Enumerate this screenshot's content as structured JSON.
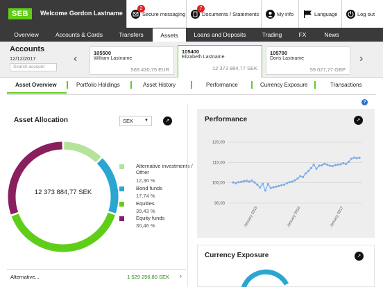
{
  "header": {
    "logo": "SEB",
    "welcome": "Welcome Gordon Lastname",
    "buttons": [
      {
        "label": "Secure messaging",
        "icon": "envelope-icon",
        "badge": "2"
      },
      {
        "label": "Documents / Statements",
        "icon": "document-icon",
        "badge": "7"
      },
      {
        "label": "My info",
        "icon": "user-icon"
      },
      {
        "label": "Language",
        "icon": "flag-icon"
      },
      {
        "label": "Log out",
        "icon": "logout-icon"
      }
    ]
  },
  "nav": [
    "Overview",
    "Accounts & Cards",
    "Transfers",
    "Assets",
    "Loans and Deposits",
    "Trading",
    "FX",
    "News"
  ],
  "accounts": {
    "title": "Accounts",
    "date": "12/12/2017",
    "search_placeholder": "Search account",
    "cards": [
      {
        "number": "105500",
        "name": "William Lastname",
        "balance": "569 430,75 EUR"
      },
      {
        "number": "105400",
        "name": "Elizabeth Lastname",
        "balance": "12 373 884,77 SEK"
      },
      {
        "number": "105700",
        "name": "Doris Lastname",
        "balance": "59 027,77 GBP"
      }
    ]
  },
  "subtabs": [
    "Asset Overview",
    "Portfolio Holdings",
    "Asset History",
    "Performance",
    "Currency Exposure",
    "Transactions"
  ],
  "help": "?",
  "asset_allocation": {
    "title": "Asset Allocation",
    "currency": "SEK",
    "total": "12 373 884,77 SEK",
    "legend": [
      {
        "label": "Alternative investments / Other",
        "pct": "12,36 %",
        "value": 12.36,
        "color": "#b5e39a"
      },
      {
        "label": "Bond funds",
        "pct": "17,74 %",
        "value": 17.74,
        "color": "#2aa6d0"
      },
      {
        "label": "Equities",
        "pct": "39,43 %",
        "value": 39.43,
        "color": "#60cd18"
      },
      {
        "label": "Equity funds",
        "pct": "30,46 %",
        "value": 30.46,
        "color": "#8a1e5e"
      }
    ],
    "row": {
      "label": "Alternative...",
      "value": "1 529 256,80 SEK"
    }
  },
  "performance": {
    "title": "Performance"
  },
  "currency_exposure": {
    "title": "Currency Exposure"
  },
  "chart_data": {
    "type": "line",
    "title": "Performance",
    "yticks": [
      "120,00",
      "110,00",
      "100,00",
      "90,00"
    ],
    "ylim": [
      90,
      120
    ],
    "xticks": [
      "January 2015",
      "January 2016",
      "January 2017"
    ],
    "series": [
      {
        "color": "#7aaee8",
        "values": [
          100.2,
          99.8,
          100.3,
          100.5,
          100.8,
          101.0,
          100.6,
          101.1,
          100.2,
          99.1,
          97.7,
          99.5,
          96.2,
          99.4,
          97.4,
          97.8,
          98.1,
          98.4,
          98.8,
          99.1,
          99.8,
          100.3,
          100.6,
          101.2,
          102.1,
          103.2,
          102.8,
          104.6,
          105.8,
          107.2,
          108.9,
          106.9,
          108.4,
          108.6,
          109.3,
          108.9,
          108.4,
          108.2,
          108.7,
          108.9,
          109.1,
          109.6,
          109.2,
          110.3,
          111.8,
          112.4,
          112.1,
          112.3
        ]
      }
    ]
  },
  "colors": {
    "brand": "#60cd18",
    "header_dark": "#3a3a3a"
  }
}
